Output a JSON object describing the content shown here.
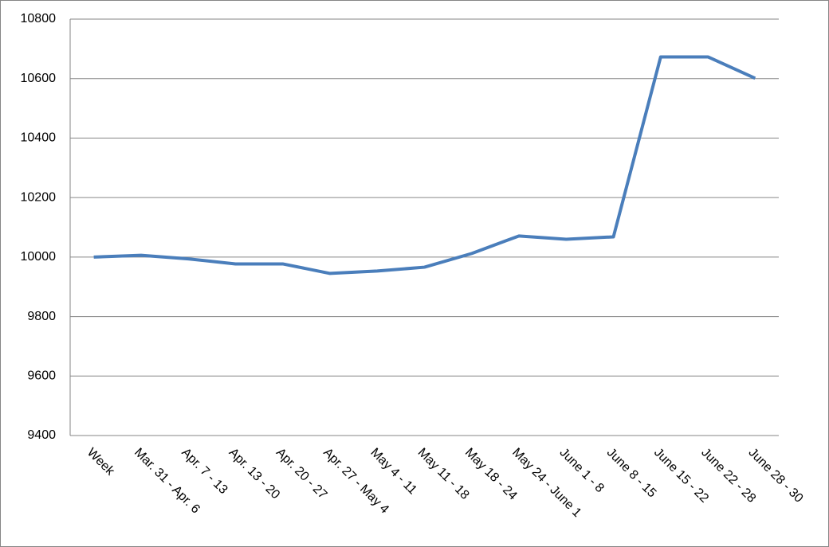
{
  "chart_data": {
    "type": "line",
    "categories": [
      "Week",
      "Mar. 31 - Apr. 6",
      "Apr. 7 - 13",
      "Apr. 13 - 20",
      "Apr. 20 - 27",
      "Apr. 27 - May 4",
      "May 4 - 11",
      "May 11 - 18",
      "May 18 - 24",
      "May 24 - June 1",
      "June 1 - 8",
      "June 8 - 15",
      "June 15 - 22",
      "June 22 - 28",
      "June 28 - 30"
    ],
    "values": [
      10000,
      10006,
      9994,
      9977,
      9977,
      9945,
      9953,
      9966,
      10012,
      10071,
      10060,
      10068,
      10673,
      10673,
      10601
    ],
    "color": "#4a7ebb",
    "ylim": [
      9400,
      10800
    ],
    "yticks": [
      9400,
      9600,
      9800,
      10000,
      10200,
      10400,
      10600,
      10800
    ],
    "grid": true
  }
}
